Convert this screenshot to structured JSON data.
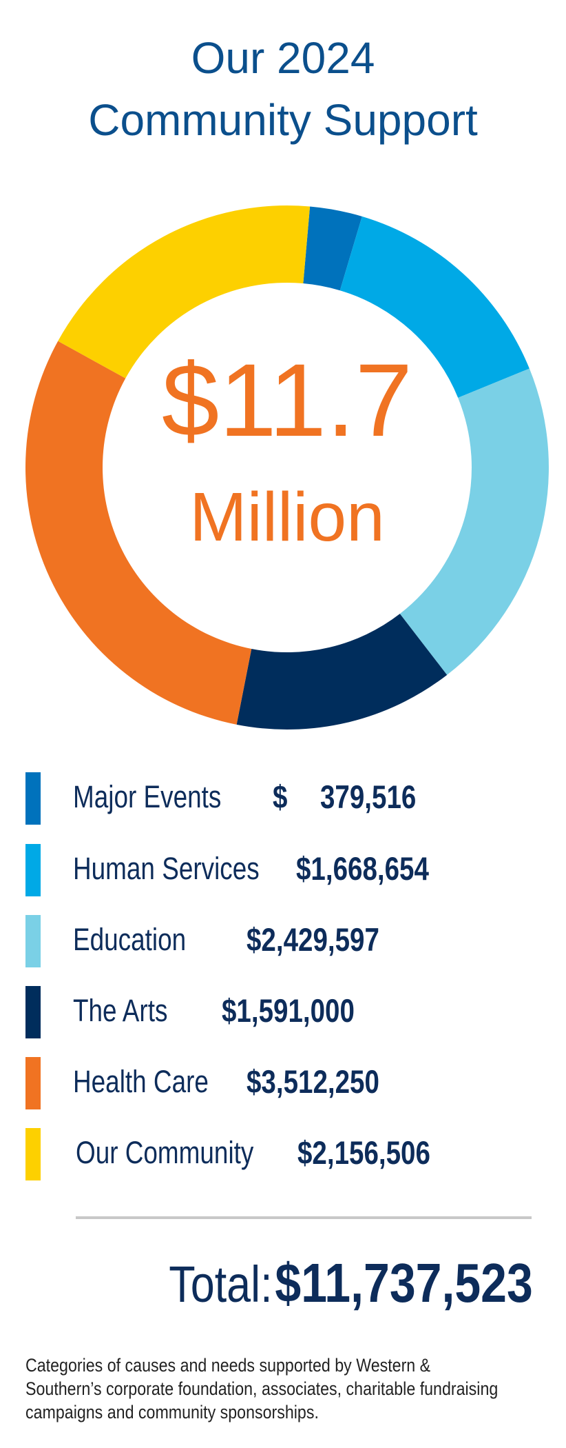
{
  "title": {
    "line1": "Our 2024",
    "line2": "Community Support"
  },
  "center": {
    "amount": "$11.7",
    "unit": "Million"
  },
  "chart_data": {
    "type": "pie",
    "donut": true,
    "categories": [
      "Major Events",
      "Human Services",
      "Education",
      "The Arts",
      "Health Care",
      "Our Community"
    ],
    "values": [
      379516,
      1668654,
      2429597,
      1591000,
      3512250,
      2156506
    ],
    "colors": [
      "#0072bc",
      "#00a9e6",
      "#7ad0e6",
      "#002d5c",
      "#f07322",
      "#fdd000"
    ],
    "legend": "bottom"
  },
  "legend": [
    {
      "label": "Major Events",
      "value_symbol": "$",
      "value": "379,516"
    },
    {
      "label": "Human Services",
      "value": "$1,668,654"
    },
    {
      "label": "Education",
      "value": "$2,429,597"
    },
    {
      "label": "The Arts",
      "value": "$1,591,000"
    },
    {
      "label": "Health Care",
      "value": "$3,512,250"
    },
    {
      "label": "Our Community",
      "value": "$2,156,506"
    }
  ],
  "total": {
    "label": "Total:",
    "value": "$11,737,523"
  },
  "footnote": "Categories of causes and needs supported by Western & Southern’s corporate foundation, associates, charitable fundraising campaigns and community sponsorships."
}
